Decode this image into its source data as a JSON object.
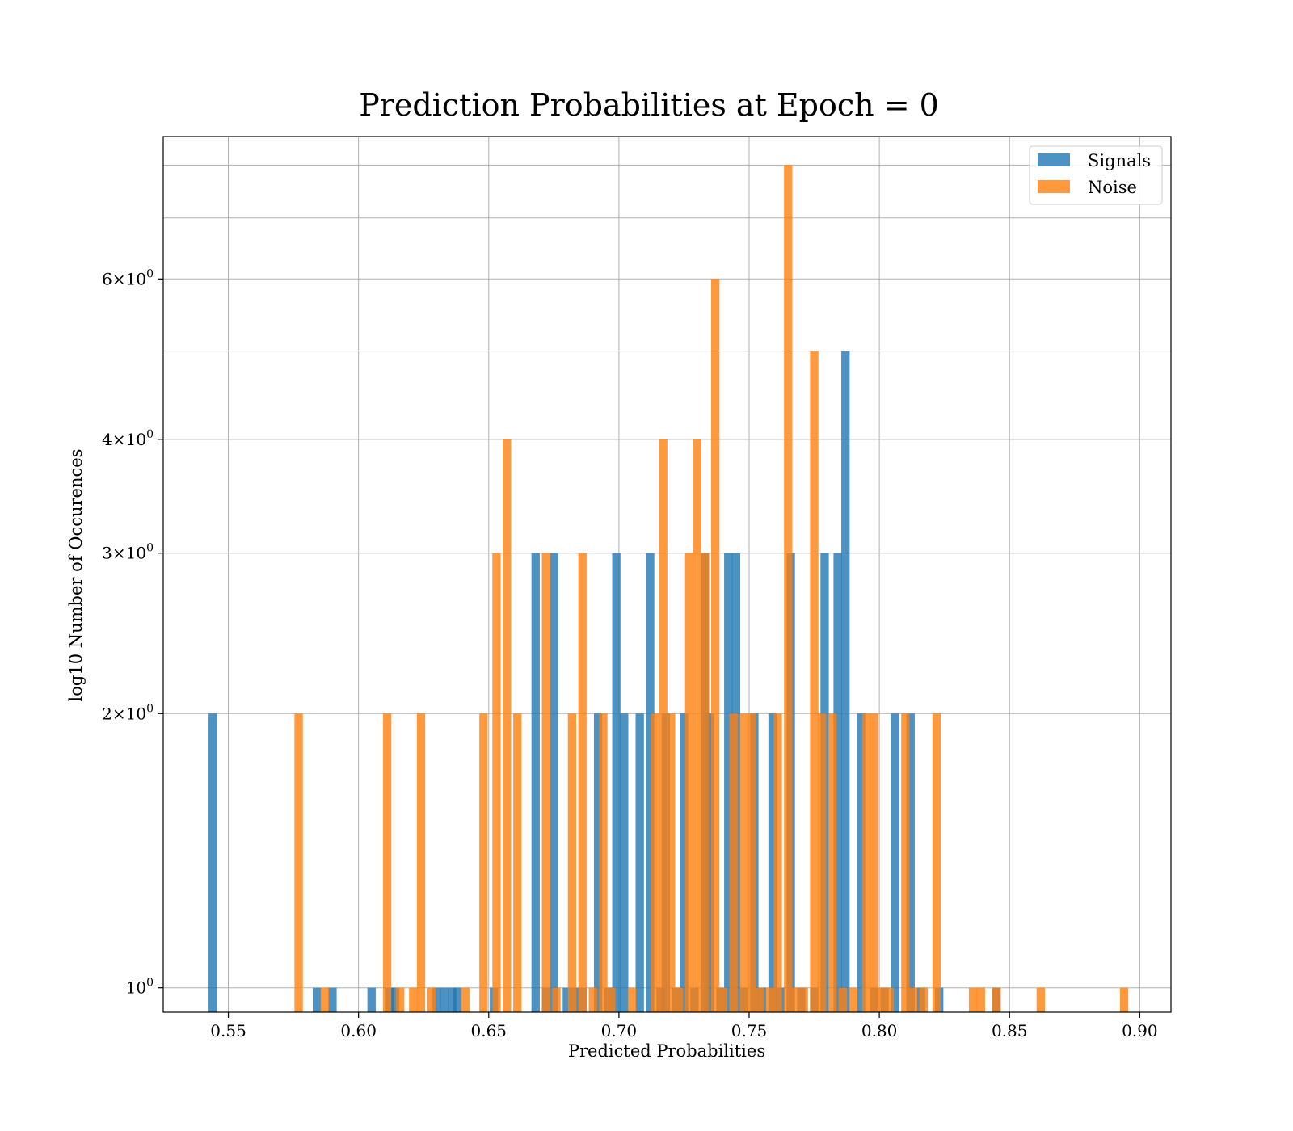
{
  "chart_data": {
    "type": "bar",
    "title": "Prediction Probabilities at Epoch = 0",
    "xlabel": "Predicted Probabilities",
    "ylabel": "log10 Number of Occurences",
    "xlim": [
      0.525,
      0.912
    ],
    "ylim": [
      0.94,
      8.6
    ],
    "yscale": "log",
    "grid": true,
    "legend_position": "top-right",
    "bar_width": 0.0032,
    "x_ticks": [
      {
        "value": 0.55,
        "label": "0.55"
      },
      {
        "value": 0.6,
        "label": "0.60"
      },
      {
        "value": 0.65,
        "label": "0.65"
      },
      {
        "value": 0.7,
        "label": "0.70"
      },
      {
        "value": 0.75,
        "label": "0.75"
      },
      {
        "value": 0.8,
        "label": "0.80"
      },
      {
        "value": 0.85,
        "label": "0.85"
      },
      {
        "value": 0.9,
        "label": "0.90"
      }
    ],
    "y_ticks": [
      {
        "value": 1,
        "base": "10",
        "exp": "0",
        "coef": ""
      },
      {
        "value": 2,
        "base": "10",
        "exp": "0",
        "coef": "2"
      },
      {
        "value": 3,
        "base": "10",
        "exp": "0",
        "coef": "3"
      },
      {
        "value": 4,
        "base": "10",
        "exp": "0",
        "coef": "4"
      },
      {
        "value": 6,
        "base": "10",
        "exp": "0",
        "coef": "6"
      }
    ],
    "y_minor_gridlines": [
      5,
      7,
      8
    ],
    "series": [
      {
        "name": "Signals",
        "color": "#1f77b4",
        "opacity": 0.8,
        "x": [
          0.544,
          0.584,
          0.59,
          0.605,
          0.612,
          0.614,
          0.63,
          0.633,
          0.636,
          0.638,
          0.652,
          0.668,
          0.672,
          0.675,
          0.68,
          0.683,
          0.686,
          0.692,
          0.696,
          0.699,
          0.702,
          0.708,
          0.712,
          0.716,
          0.718,
          0.722,
          0.725,
          0.729,
          0.733,
          0.735,
          0.739,
          0.742,
          0.745,
          0.748,
          0.752,
          0.755,
          0.759,
          0.762,
          0.766,
          0.77,
          0.775,
          0.779,
          0.784,
          0.787,
          0.793,
          0.798,
          0.802,
          0.806,
          0.812,
          0.816,
          0.823,
          0.845
        ],
        "values": [
          2,
          1,
          1,
          1,
          1,
          1,
          1,
          1,
          1,
          1,
          1,
          3,
          1,
          3,
          1,
          1,
          1,
          2,
          1,
          3,
          2,
          2,
          3,
          1,
          2,
          1,
          2,
          1,
          3,
          2,
          1,
          3,
          3,
          1,
          2,
          1,
          2,
          1,
          3,
          1,
          1,
          3,
          3,
          5,
          2,
          1,
          1,
          2,
          2,
          1,
          1,
          1
        ]
      },
      {
        "name": "Noise",
        "color": "#ff7f0e",
        "opacity": 0.8,
        "x": [
          0.577,
          0.587,
          0.611,
          0.616,
          0.621,
          0.624,
          0.628,
          0.641,
          0.648,
          0.653,
          0.657,
          0.661,
          0.672,
          0.676,
          0.682,
          0.686,
          0.69,
          0.694,
          0.697,
          0.705,
          0.714,
          0.717,
          0.72,
          0.723,
          0.727,
          0.73,
          0.733,
          0.737,
          0.74,
          0.744,
          0.748,
          0.751,
          0.754,
          0.758,
          0.761,
          0.765,
          0.768,
          0.771,
          0.775,
          0.778,
          0.782,
          0.786,
          0.79,
          0.795,
          0.798,
          0.801,
          0.804,
          0.81,
          0.813,
          0.817,
          0.822,
          0.836,
          0.839,
          0.845,
          0.862,
          0.894
        ],
        "values": [
          2,
          1,
          2,
          1,
          1,
          2,
          1,
          1,
          2,
          3,
          4,
          2,
          3,
          1,
          2,
          3,
          1,
          2,
          1,
          1,
          2,
          4,
          2,
          1,
          3,
          4,
          3,
          6,
          1,
          2,
          2,
          2,
          1,
          1,
          2,
          8,
          1,
          1,
          5,
          2,
          2,
          1,
          1,
          2,
          2,
          1,
          1,
          2,
          1,
          1,
          2,
          1,
          1,
          1,
          1,
          1
        ]
      }
    ]
  }
}
